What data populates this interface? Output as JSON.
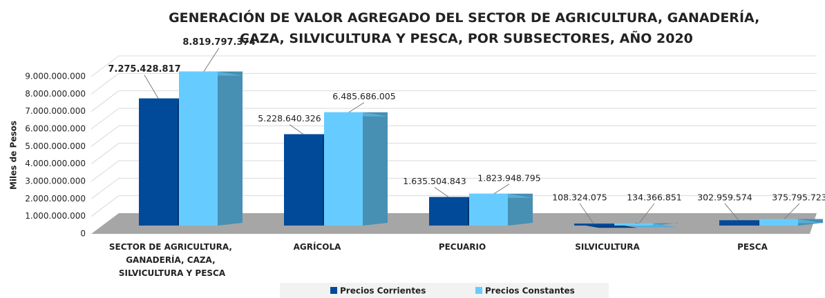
{
  "chart_data": {
    "type": "bar3d",
    "title": "GENERACIÓN DE VALOR AGREGADO DEL SECTOR DE AGRICULTURA, GANADERÍA, CAZA, SILVICULTURA Y PESCA, POR SUBSECTORES, AÑO 2020",
    "y_label": "Miles de Pesos",
    "categories": [
      "SECTOR DE AGRICULTURA, GANADERÍA, CAZA, SILVICULTURA Y PESCA",
      "AGRÍCOLA",
      "PECUARIO",
      "SILVICULTURA",
      "PESCA"
    ],
    "series": [
      {
        "name": "Precios Corrientes",
        "color": "#004a99",
        "values": [
          7275428817,
          5228640326,
          1635504843,
          108324075,
          302959574
        ],
        "value_labels": [
          "7.275.428.817",
          "5.228.640.326",
          "1.635.504.843",
          "108.324.075",
          "302.959.574"
        ]
      },
      {
        "name": "Precios Constantes",
        "color": "#66ccff",
        "values": [
          8819797374,
          6485686005,
          1823948795,
          134366851,
          375795723
        ],
        "value_labels": [
          "8.819.797.374",
          "6.485.686.005",
          "1.823.948.795",
          "134.366.851",
          "375.795.723"
        ]
      }
    ],
    "ylim": [
      0,
      9000000000
    ],
    "yticks": [
      0,
      {
        "value": 1000000000,
        "label": "1.000.000.000"
      },
      {
        "value": 2000000000,
        "label": "2.000.000.000"
      },
      {
        "value": 3000000000,
        "label": "3.000.000.000"
      },
      {
        "value": 4000000000,
        "label": "4.000.000.000"
      },
      {
        "value": 5000000000,
        "label": "5.000.000.000"
      },
      {
        "value": 6000000000,
        "label": "6.000.000.000"
      },
      {
        "value": 7000000000,
        "label": "7.000.000.000"
      },
      {
        "value": 8000000000,
        "label": "8.000.000.000"
      },
      {
        "value": 9000000000,
        "label": "9.000.000.000"
      }
    ],
    "grid": true,
    "legend": "bottom"
  }
}
